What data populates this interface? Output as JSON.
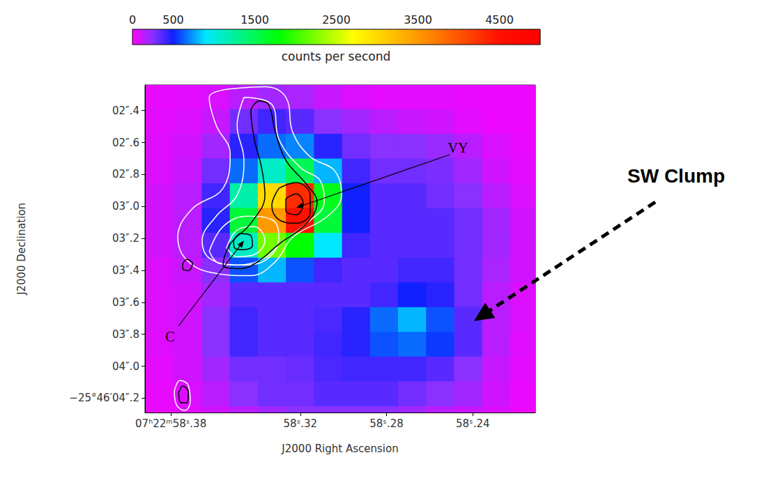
{
  "chart_data": {
    "type": "heatmap",
    "x_label": "J2000 Right Ascension",
    "y_label": "J2000 Declination",
    "xlim": [
      58.392,
      58.211
    ],
    "xticks": [
      {
        "value": 58.38,
        "label": "07ʰ22ᵐ58ˢ.38"
      },
      {
        "value": 58.32,
        "label": "58ˢ.32"
      },
      {
        "value": 58.28,
        "label": "58ˢ.28"
      },
      {
        "value": 58.24,
        "label": "58ˢ.24"
      }
    ],
    "ylim": [
      4.29,
      2.24
    ],
    "yticks": [
      {
        "value": 2.4,
        "label": "02″.4"
      },
      {
        "value": 2.6,
        "label": "02″.6"
      },
      {
        "value": 2.8,
        "label": "02″.8"
      },
      {
        "value": 3.0,
        "label": "03″.0"
      },
      {
        "value": 3.2,
        "label": "03″.2"
      },
      {
        "value": 3.4,
        "label": "03″.4"
      },
      {
        "value": 3.6,
        "label": "03″.6"
      },
      {
        "value": 3.8,
        "label": "03″.8"
      },
      {
        "value": 4.0,
        "label": "04″.0"
      },
      {
        "value": 4.2,
        "label": "−25°46′04″.2"
      }
    ],
    "x": [
      58.385,
      58.372,
      58.359,
      58.346,
      58.333,
      58.32,
      58.307,
      58.294,
      58.281,
      58.268,
      58.255,
      58.242,
      58.229,
      58.216
    ],
    "y": [
      2.315,
      2.47,
      2.625,
      2.78,
      2.935,
      3.09,
      3.245,
      3.4,
      3.555,
      3.71,
      3.865,
      4.02,
      4.175,
      4.33
    ],
    "values": [
      [
        50,
        60,
        80,
        150,
        200,
        180,
        120,
        80,
        60,
        60,
        60,
        50,
        40,
        40
      ],
      [
        60,
        80,
        120,
        300,
        400,
        350,
        250,
        200,
        150,
        120,
        100,
        60,
        40,
        40
      ],
      [
        70,
        100,
        200,
        450,
        650,
        700,
        450,
        300,
        250,
        250,
        220,
        150,
        80,
        50
      ],
      [
        80,
        120,
        300,
        650,
        1100,
        1500,
        800,
        400,
        300,
        300,
        280,
        200,
        100,
        60
      ],
      [
        100,
        150,
        400,
        1200,
        3000,
        4300,
        1700,
        500,
        350,
        350,
        300,
        250,
        150,
        80
      ],
      [
        100,
        150,
        450,
        1600,
        3500,
        4500,
        1600,
        500,
        350,
        350,
        350,
        300,
        200,
        100
      ],
      [
        100,
        150,
        350,
        1100,
        2200,
        1800,
        900,
        400,
        350,
        350,
        350,
        300,
        200,
        100
      ],
      [
        80,
        120,
        250,
        600,
        800,
        600,
        400,
        350,
        350,
        400,
        400,
        300,
        180,
        100
      ],
      [
        80,
        100,
        200,
        350,
        350,
        350,
        350,
        350,
        400,
        500,
        450,
        300,
        150,
        80
      ],
      [
        80,
        100,
        250,
        400,
        350,
        350,
        380,
        450,
        650,
        800,
        600,
        350,
        150,
        80
      ],
      [
        70,
        100,
        250,
        400,
        350,
        350,
        400,
        450,
        600,
        650,
        550,
        350,
        150,
        70
      ],
      [
        60,
        100,
        200,
        300,
        300,
        320,
        380,
        400,
        400,
        400,
        350,
        250,
        120,
        60
      ],
      [
        50,
        80,
        150,
        250,
        300,
        300,
        350,
        350,
        350,
        300,
        250,
        200,
        100,
        50
      ],
      [
        40,
        60,
        100,
        150,
        200,
        250,
        250,
        250,
        250,
        200,
        150,
        120,
        80,
        40
      ]
    ],
    "colorbar": {
      "label": "counts per second",
      "range": [
        0,
        5000
      ],
      "ticks": [
        0,
        500,
        1500,
        2500,
        3500,
        4500
      ]
    },
    "contours": [
      {
        "color": "white",
        "paths": [
          [
            [
              58.3525,
              2.264
            ],
            [
              58.3364,
              2.251
            ],
            [
              58.3267,
              2.317
            ],
            [
              58.3235,
              2.536
            ],
            [
              58.3154,
              2.689
            ],
            [
              58.3041,
              2.776
            ],
            [
              58.3009,
              2.93
            ],
            [
              58.3073,
              3.061
            ],
            [
              58.3235,
              3.192
            ],
            [
              58.3315,
              3.345
            ],
            [
              58.3429,
              3.433
            ],
            [
              58.3622,
              3.411
            ],
            [
              58.3735,
              3.323
            ],
            [
              58.3768,
              3.192
            ],
            [
              58.3703,
              3.017
            ],
            [
              58.3558,
              2.886
            ],
            [
              58.3525,
              2.667
            ],
            [
              58.359,
              2.492
            ],
            [
              58.3622,
              2.317
            ]
          ],
          [
            [
              58.3461,
              2.317
            ],
            [
              58.3332,
              2.361
            ],
            [
              58.3299,
              2.579
            ],
            [
              58.3202,
              2.754
            ],
            [
              58.3106,
              2.842
            ],
            [
              58.3089,
              2.973
            ],
            [
              58.317,
              3.105
            ],
            [
              58.3299,
              3.236
            ],
            [
              58.3364,
              3.323
            ],
            [
              58.3493,
              3.367
            ],
            [
              58.3622,
              3.323
            ],
            [
              58.3655,
              3.214
            ],
            [
              58.359,
              3.061
            ],
            [
              58.3493,
              2.93
            ],
            [
              58.3461,
              2.711
            ],
            [
              58.3493,
              2.492
            ]
          ],
          [
            [
              58.3622,
              3.28
            ],
            [
              58.3558,
              3.126
            ],
            [
              58.3445,
              3.061
            ],
            [
              58.3332,
              3.083
            ],
            [
              58.3299,
              3.192
            ],
            [
              58.3348,
              3.323
            ],
            [
              58.3461,
              3.367
            ],
            [
              58.3574,
              3.358
            ]
          ],
          [
            [
              58.3542,
              3.258
            ],
            [
              58.3493,
              3.148
            ],
            [
              58.3413,
              3.126
            ],
            [
              58.3364,
              3.214
            ],
            [
              58.3413,
              3.301
            ],
            [
              58.3493,
              3.315
            ]
          ],
          [
            [
              58.3784,
              4.155
            ],
            [
              58.3758,
              4.089
            ],
            [
              58.3719,
              4.12
            ],
            [
              58.371,
              4.22
            ],
            [
              58.3735,
              4.277
            ],
            [
              58.3774,
              4.242
            ]
          ]
        ]
      },
      {
        "color": "black",
        "paths": [
          [
            [
              58.3396,
              2.339
            ],
            [
              58.3348,
              2.361
            ],
            [
              58.3315,
              2.536
            ],
            [
              58.3267,
              2.711
            ],
            [
              58.317,
              2.864
            ],
            [
              58.3122,
              2.973
            ],
            [
              58.317,
              3.105
            ],
            [
              58.3299,
              3.236
            ],
            [
              58.3396,
              3.345
            ],
            [
              58.3477,
              3.389
            ],
            [
              58.3558,
              3.367
            ],
            [
              58.3525,
              3.236
            ],
            [
              58.3429,
              3.105
            ],
            [
              58.3364,
              2.93
            ],
            [
              58.338,
              2.754
            ],
            [
              58.3413,
              2.579
            ],
            [
              58.3429,
              2.404
            ]
          ],
          [
            [
              58.3299,
              2.886
            ],
            [
              58.3219,
              2.851
            ],
            [
              58.3154,
              2.93
            ],
            [
              58.3154,
              3.039
            ],
            [
              58.3219,
              3.105
            ],
            [
              58.3299,
              3.083
            ],
            [
              58.3332,
              2.995
            ]
          ],
          [
            [
              58.3267,
              2.951
            ],
            [
              58.3219,
              2.921
            ],
            [
              58.3186,
              2.982
            ],
            [
              58.3219,
              3.052
            ],
            [
              58.3267,
              3.026
            ]
          ],
          [
            [
              58.3509,
              3.214
            ],
            [
              58.3477,
              3.17
            ],
            [
              58.3429,
              3.183
            ],
            [
              58.3422,
              3.245
            ],
            [
              58.3467,
              3.271
            ],
            [
              58.3506,
              3.258
            ]
          ],
          [
            [
              58.3745,
              3.358
            ],
            [
              58.3726,
              3.332
            ],
            [
              58.37,
              3.358
            ],
            [
              58.3719,
              3.402
            ],
            [
              58.3745,
              3.389
            ]
          ],
          [
            [
              58.3764,
              4.168
            ],
            [
              58.3745,
              4.124
            ],
            [
              58.3719,
              4.163
            ],
            [
              58.3726,
              4.229
            ],
            [
              58.3752,
              4.229
            ]
          ]
        ]
      }
    ],
    "annotations": [
      {
        "text": "VY",
        "x": 58.3219,
        "y": 3.008
      },
      {
        "text": "C",
        "x": 58.3461,
        "y": 3.214
      },
      {
        "text": "SW Clump",
        "x": 58.2395,
        "y": 3.717
      }
    ]
  }
}
